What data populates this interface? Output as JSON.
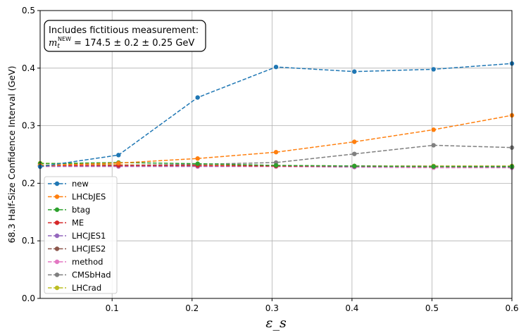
{
  "chart_data": {
    "type": "line",
    "title": "",
    "xlabel": "ε_s",
    "ylabel": "68.3 Half-Size Confidence Interval (GeV)",
    "xlim": [
      0.01,
      0.6
    ],
    "ylim": [
      0.0,
      0.5
    ],
    "xticks": [
      0.1,
      0.2,
      0.3,
      0.4,
      0.5,
      0.6
    ],
    "xtick_labels": [
      "0.1",
      "0.2",
      "0.3",
      "0.4",
      "0.5",
      "0.6"
    ],
    "yticks": [
      0.0,
      0.1,
      0.2,
      0.3,
      0.4,
      0.5
    ],
    "ytick_labels": [
      "0.0",
      "0.1",
      "0.2",
      "0.3",
      "0.4",
      "0.5"
    ],
    "grid": true,
    "legend_position": "lower-left",
    "annotation": {
      "line1": "Includes fictitious measurement:",
      "line2_symbol": "m",
      "line2_sub": "t",
      "line2_sup": "NEW",
      "line2_value": " = 174.5 ± 0.2 ± 0.25 GeV"
    },
    "x": [
      0.01,
      0.108,
      0.207,
      0.305,
      0.403,
      0.502,
      0.6
    ],
    "series": [
      {
        "name": "new",
        "color": "#1f77b4",
        "values": [
          0.229,
          0.249,
          0.349,
          0.402,
          0.394,
          0.398,
          0.408
        ]
      },
      {
        "name": "LHCbJES",
        "color": "#ff7f0e",
        "values": [
          0.231,
          0.235,
          0.243,
          0.254,
          0.272,
          0.293,
          0.318
        ]
      },
      {
        "name": "btag",
        "color": "#2ca02c",
        "values": [
          0.234,
          0.236,
          0.234,
          0.231,
          0.23,
          0.229,
          0.229
        ]
      },
      {
        "name": "ME",
        "color": "#d62728",
        "values": [
          0.231,
          0.231,
          0.231,
          0.23,
          0.23,
          0.229,
          0.229
        ]
      },
      {
        "name": "LHCJES1",
        "color": "#9467bd",
        "values": [
          0.23,
          0.23,
          0.23,
          0.23,
          0.229,
          0.229,
          0.228
        ]
      },
      {
        "name": "LHCJES2",
        "color": "#8c564b",
        "values": [
          0.23,
          0.23,
          0.23,
          0.23,
          0.229,
          0.229,
          0.228
        ]
      },
      {
        "name": "method",
        "color": "#e377c2",
        "values": [
          0.229,
          0.229,
          0.229,
          0.229,
          0.228,
          0.227,
          0.227
        ]
      },
      {
        "name": "CMSbHad",
        "color": "#7f7f7f",
        "values": [
          0.23,
          0.231,
          0.233,
          0.236,
          0.251,
          0.266,
          0.262
        ]
      },
      {
        "name": "LHCrad",
        "color": "#bcbd22",
        "values": [
          0.235,
          0.232,
          0.231,
          0.231,
          0.23,
          0.23,
          0.23
        ]
      }
    ]
  }
}
